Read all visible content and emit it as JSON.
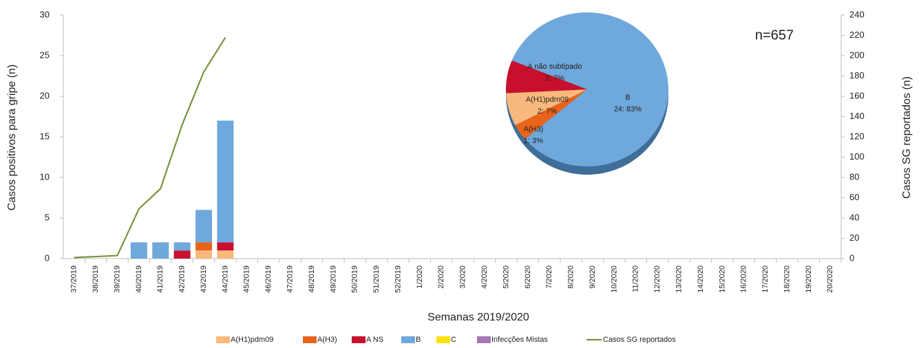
{
  "chart_data": [
    {
      "type": "bar",
      "y_label": "Casos positivos para gripe (n)",
      "y2_label": "Casos SG reportados  (n)",
      "x_label": "Semanas 2019/2020",
      "categories": [
        "37/2019",
        "38/2019",
        "39/2019",
        "40/2019",
        "41/2019",
        "42/2019",
        "43/2019",
        "44/2019",
        "45/2019",
        "46/2019",
        "47/2019",
        "48/2019",
        "49/2019",
        "50/2019",
        "51/2019",
        "52/2019",
        "1/2020",
        "2/2020",
        "3/2020",
        "4/2020",
        "5/2020",
        "6/2020",
        "7/2020",
        "8/2020",
        "9/2020",
        "10/2020",
        "11/2020",
        "12/2020",
        "13/2020",
        "14/2020",
        "15/2020",
        "16/2020",
        "17/2020",
        "18/2020",
        "19/2020",
        "20/2020"
      ],
      "series": [
        {
          "name": "A(H1)pdm09",
          "color": "#f9b97c",
          "values": [
            0,
            0,
            0,
            0,
            0,
            0,
            1,
            1,
            null,
            null,
            null,
            null,
            null,
            null,
            null,
            null,
            null,
            null,
            null,
            null,
            null,
            null,
            null,
            null,
            null,
            null,
            null,
            null,
            null,
            null,
            null,
            null,
            null,
            null,
            null,
            null
          ]
        },
        {
          "name": "A(H3)",
          "color": "#e8641b",
          "values": [
            0,
            0,
            0,
            0,
            0,
            0,
            1,
            0,
            null,
            null,
            null,
            null,
            null,
            null,
            null,
            null,
            null,
            null,
            null,
            null,
            null,
            null,
            null,
            null,
            null,
            null,
            null,
            null,
            null,
            null,
            null,
            null,
            null,
            null,
            null,
            null
          ]
        },
        {
          "name": "A NS",
          "color": "#c8102e",
          "values": [
            0,
            0,
            0,
            0,
            0,
            1,
            0,
            1,
            null,
            null,
            null,
            null,
            null,
            null,
            null,
            null,
            null,
            null,
            null,
            null,
            null,
            null,
            null,
            null,
            null,
            null,
            null,
            null,
            null,
            null,
            null,
            null,
            null,
            null,
            null,
            null
          ]
        },
        {
          "name": "B",
          "color": "#6fa8dc",
          "values": [
            0,
            0,
            0,
            2,
            2,
            1,
            4,
            15,
            null,
            null,
            null,
            null,
            null,
            null,
            null,
            null,
            null,
            null,
            null,
            null,
            null,
            null,
            null,
            null,
            null,
            null,
            null,
            null,
            null,
            null,
            null,
            null,
            null,
            null,
            null,
            null
          ]
        },
        {
          "name": "C",
          "color": "#ffe100",
          "values": [
            0,
            0,
            0,
            0,
            0,
            0,
            0,
            0,
            null,
            null,
            null,
            null,
            null,
            null,
            null,
            null,
            null,
            null,
            null,
            null,
            null,
            null,
            null,
            null,
            null,
            null,
            null,
            null,
            null,
            null,
            null,
            null,
            null,
            null,
            null,
            null
          ]
        },
        {
          "name": "Infecções Mistas",
          "color": "#a678b4",
          "values": [
            0,
            0,
            0,
            0,
            0,
            0,
            0,
            0,
            null,
            null,
            null,
            null,
            null,
            null,
            null,
            null,
            null,
            null,
            null,
            null,
            null,
            null,
            null,
            null,
            null,
            null,
            null,
            null,
            null,
            null,
            null,
            null,
            null,
            null,
            null,
            null
          ]
        },
        {
          "name": "Casos SG reportados",
          "color": "#77933c",
          "type": "line",
          "axis": "y2",
          "values": [
            1,
            2,
            3,
            49,
            69,
            132,
            184,
            218,
            null,
            null,
            null,
            null,
            null,
            null,
            null,
            null,
            null,
            null,
            null,
            null,
            null,
            null,
            null,
            null,
            null,
            null,
            null,
            null,
            null,
            null,
            null,
            null,
            null,
            null,
            null,
            null
          ]
        }
      ],
      "ylim": [
        0,
        30
      ],
      "yticks": [
        0,
        5,
        10,
        15,
        20,
        25,
        30
      ],
      "y2lim": [
        0,
        240
      ],
      "y2ticks": [
        0,
        20,
        40,
        60,
        80,
        100,
        120,
        140,
        160,
        180,
        200,
        220,
        240
      ],
      "stacked": true,
      "legend": "bottom"
    },
    {
      "type": "pie",
      "annotation": "n=657",
      "categories": [
        "B",
        "A(H3)",
        "A(H1)pdm09",
        "A não subtipado"
      ],
      "values": [
        24,
        1,
        2,
        2
      ],
      "value_labels": [
        "24: 83%",
        "1: 3%",
        "2: 7%",
        "2: 7%"
      ],
      "colors": [
        "#6fa8dc",
        "#e8641b",
        "#f9b97c",
        "#c8102e"
      ]
    }
  ]
}
